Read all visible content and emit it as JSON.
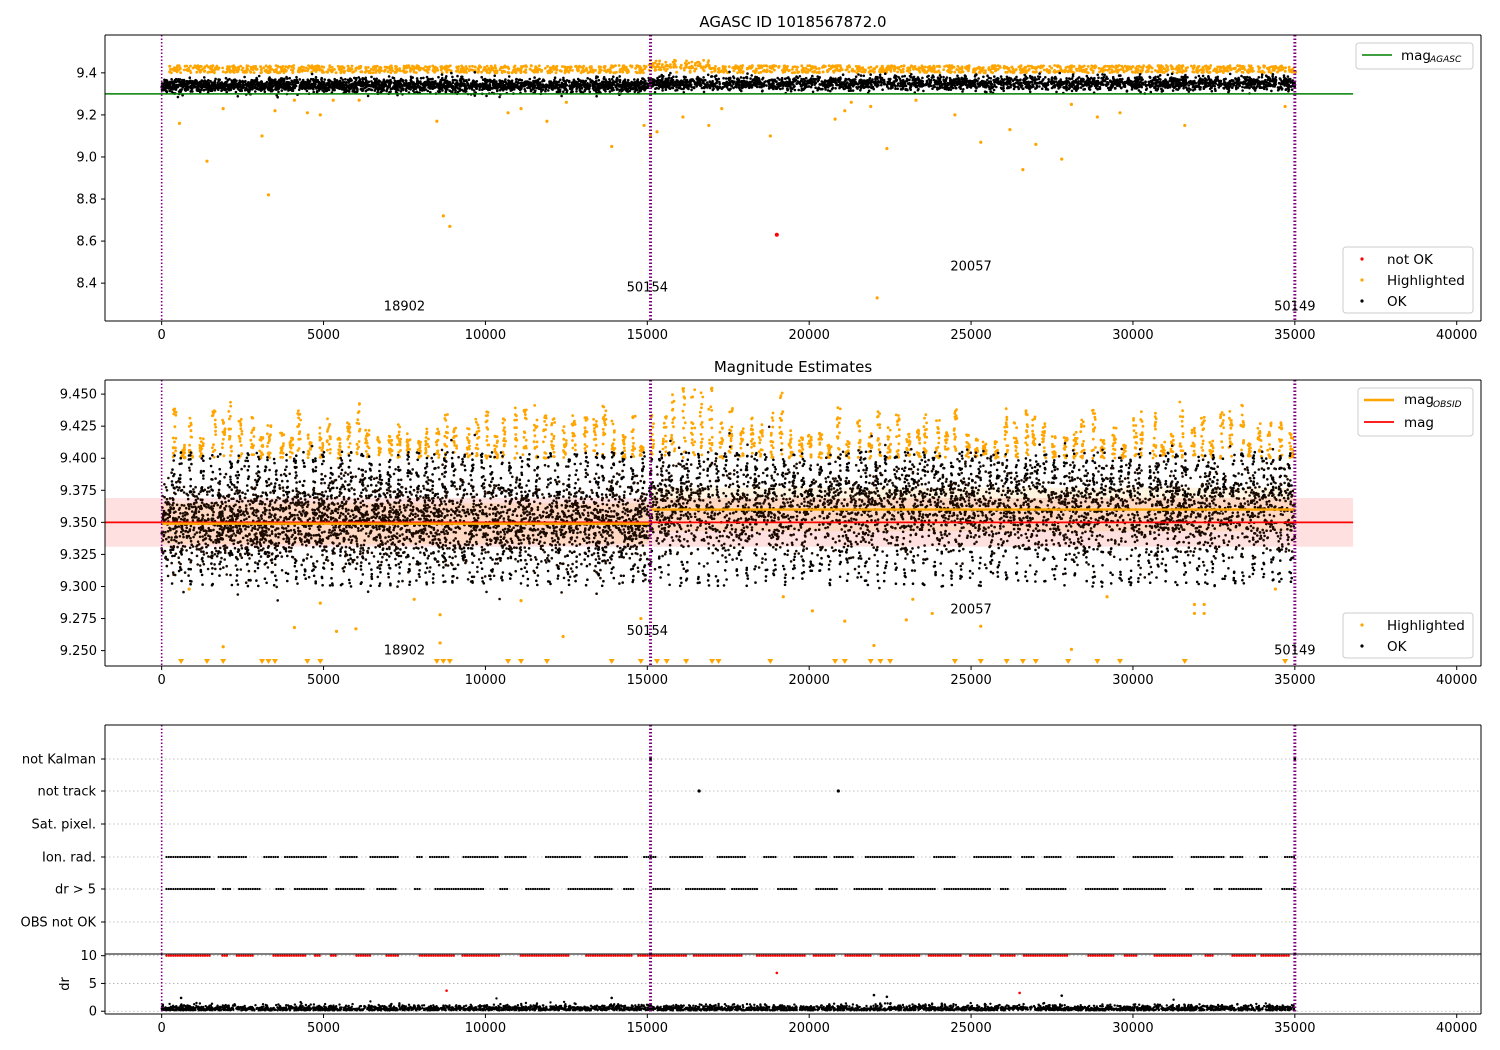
{
  "colors": {
    "ok": "#000000",
    "highlighted": "#ffa500",
    "not_ok": "#ff0000",
    "mag_agasc": "#008000",
    "mag_obsid": "#ffa500",
    "mag": "#ff0000",
    "obs_boundary": "#800080"
  },
  "chart_data": [
    {
      "type": "scatter",
      "title": "AGASC ID 1018567872.0",
      "xlim": [
        -1750,
        40750
      ],
      "ylim": [
        8.22,
        9.58
      ],
      "xticks": [
        0,
        5000,
        10000,
        15000,
        20000,
        25000,
        30000,
        35000,
        40000
      ],
      "xtick_labels": [
        "0",
        "5000",
        "10000",
        "15000",
        "20000",
        "25000",
        "30000",
        "35000",
        "40000"
      ],
      "yticks": [
        8.4,
        8.6,
        8.8,
        9.0,
        9.2,
        9.4
      ],
      "ytick_labels": [
        "8.4",
        "8.6",
        "8.8",
        "9.0",
        "9.2",
        "9.4"
      ],
      "obs_boundaries": [
        0,
        15100,
        35000
      ],
      "obs_labels": [
        {
          "text": "18902",
          "x": 7500,
          "y": 8.27
        },
        {
          "text": "50154",
          "x": 15000,
          "y": 8.36
        },
        {
          "text": "20057",
          "x": 25000,
          "y": 8.46
        },
        {
          "text": "50149",
          "x": 35000,
          "y": 8.27
        }
      ],
      "hlines": [
        {
          "name": "mag_agasc",
          "y": 9.3,
          "x": [
            -1750,
            36800
          ]
        }
      ],
      "series": [
        {
          "name": "OK",
          "band": [
            {
              "x": [
                0,
                15100
              ],
              "y": [
                9.31,
                9.37
              ]
            },
            {
              "x": [
                15100,
                35000
              ],
              "y": [
                9.32,
                9.38
              ]
            }
          ]
        },
        {
          "name": "Highlighted",
          "band_top": [
            9.4,
            9.44
          ]
        },
        {
          "name": "not OK",
          "points": [
            [
              19000,
              8.63
            ]
          ]
        }
      ],
      "highlighted_outliers": [
        [
          550,
          9.16
        ],
        [
          1400,
          8.98
        ],
        [
          1900,
          9.23
        ],
        [
          3100,
          9.1
        ],
        [
          3300,
          8.82
        ],
        [
          3500,
          9.22
        ],
        [
          4100,
          9.27
        ],
        [
          4500,
          9.21
        ],
        [
          4900,
          9.2
        ],
        [
          5300,
          9.27
        ],
        [
          6100,
          9.27
        ],
        [
          8500,
          9.17
        ],
        [
          8700,
          8.72
        ],
        [
          8900,
          8.67
        ],
        [
          10700,
          9.21
        ],
        [
          11100,
          9.23
        ],
        [
          11900,
          9.17
        ],
        [
          12500,
          9.26
        ],
        [
          13900,
          9.05
        ],
        [
          14900,
          9.15
        ],
        [
          15100,
          9.1
        ],
        [
          15300,
          9.12
        ],
        [
          16100,
          9.19
        ],
        [
          16900,
          9.15
        ],
        [
          17300,
          9.23
        ],
        [
          18800,
          9.1
        ],
        [
          20800,
          9.18
        ],
        [
          21100,
          9.22
        ],
        [
          21300,
          9.26
        ],
        [
          21900,
          9.24
        ],
        [
          22100,
          8.33
        ],
        [
          22400,
          9.04
        ],
        [
          23300,
          9.27
        ],
        [
          24500,
          9.2
        ],
        [
          25300,
          9.07
        ],
        [
          26200,
          9.13
        ],
        [
          26600,
          8.94
        ],
        [
          27000,
          9.06
        ],
        [
          27800,
          8.99
        ],
        [
          28100,
          9.25
        ],
        [
          28900,
          9.19
        ],
        [
          29600,
          9.21
        ],
        [
          31600,
          9.15
        ],
        [
          34700,
          9.24
        ]
      ],
      "legend": {
        "position": "upper right",
        "entries": [
          "mag",
          "AGASC"
        ]
      },
      "legend2": {
        "position": "lower right",
        "entries": [
          "not OK",
          "Highlighted",
          "OK"
        ]
      }
    },
    {
      "type": "scatter",
      "title": "Magnitude Estimates",
      "xlim": [
        -1750,
        40750
      ],
      "ylim": [
        9.238,
        9.461
      ],
      "xticks": [
        0,
        5000,
        10000,
        15000,
        20000,
        25000,
        30000,
        35000,
        40000
      ],
      "xtick_labels": [
        "0",
        "5000",
        "10000",
        "15000",
        "20000",
        "25000",
        "30000",
        "35000",
        "40000"
      ],
      "yticks": [
        9.25,
        9.275,
        9.3,
        9.325,
        9.35,
        9.375,
        9.4,
        9.425,
        9.45
      ],
      "ytick_labels": [
        "9.250",
        "9.275",
        "9.300",
        "9.325",
        "9.350",
        "9.375",
        "9.400",
        "9.425",
        "9.450"
      ],
      "obs_boundaries": [
        0,
        15100,
        35000
      ],
      "obs_labels": [
        {
          "text": "18902",
          "x": 7500,
          "y": 9.247
        },
        {
          "text": "50154",
          "x": 15000,
          "y": 9.262
        },
        {
          "text": "20057",
          "x": 25000,
          "y": 9.279
        },
        {
          "text": "50149",
          "x": 35000,
          "y": 9.247
        }
      ],
      "mag": 9.35,
      "mag_band": [
        9.331,
        9.369
      ],
      "mag_obsid": [
        {
          "x": [
            0,
            15100
          ],
          "y": 9.349,
          "band": [
            9.333,
            9.365
          ]
        },
        {
          "x": [
            15100,
            35000
          ],
          "y": 9.36,
          "band": [
            9.343,
            9.377
          ]
        }
      ],
      "series": [
        {
          "name": "OK",
          "band": [
            {
              "x": [
                0,
                15100
              ],
              "y": [
                9.32,
                9.38
              ]
            },
            {
              "x": [
                15100,
                35000
              ],
              "y": [
                9.33,
                9.39
              ]
            }
          ]
        },
        {
          "name": "Highlighted",
          "band_top": [
            9.4,
            9.44
          ]
        }
      ],
      "highlighted_low": [
        600,
        1400,
        1900,
        3100,
        3300,
        3500,
        4500,
        4900,
        8500,
        8700,
        8900,
        10700,
        11100,
        11900,
        13900,
        14800,
        15300,
        15600,
        16200,
        17000,
        17200,
        18800,
        20800,
        21100,
        21900,
        22200,
        22500,
        24500,
        25300,
        26100,
        26600,
        27000,
        28000,
        28900,
        29600,
        31600,
        34700
      ],
      "highlighted_outliers": [
        [
          850,
          9.298
        ],
        [
          1900,
          9.253
        ],
        [
          4100,
          9.268
        ],
        [
          4900,
          9.287
        ],
        [
          5400,
          9.265
        ],
        [
          6000,
          9.267
        ],
        [
          7800,
          9.29
        ],
        [
          8600,
          9.256
        ],
        [
          8600,
          9.278
        ],
        [
          11100,
          9.289
        ],
        [
          12400,
          9.261
        ],
        [
          14800,
          9.275
        ],
        [
          19200,
          9.292
        ],
        [
          20100,
          9.281
        ],
        [
          21100,
          9.273
        ],
        [
          22000,
          9.254
        ],
        [
          23000,
          9.274
        ],
        [
          23200,
          9.29
        ],
        [
          23800,
          9.279
        ],
        [
          25300,
          9.269
        ],
        [
          28100,
          9.251
        ],
        [
          29200,
          9.292
        ],
        [
          31900,
          9.279
        ],
        [
          31900,
          9.286
        ],
        [
          32200,
          9.286
        ],
        [
          32200,
          9.279
        ],
        [
          34400,
          9.298
        ]
      ],
      "legend": {
        "position": "upper right",
        "entries": [
          "mag",
          "OBSID",
          "mag"
        ]
      },
      "legend2": {
        "position": "lower right",
        "entries": [
          "Highlighted",
          "OK"
        ]
      }
    },
    {
      "type": "scatter",
      "title": "",
      "xlim": [
        -1750,
        40750
      ],
      "ytick_labels": [
        "not Kalman",
        "not track",
        "Sat. pixel.",
        "Ion. rad.",
        "dr > 5",
        "OBS not OK"
      ],
      "obs_boundaries": [
        0,
        15100,
        35000
      ],
      "flags": {
        "not_track": [
          16600,
          20900
        ],
        "not_kalman": [
          15100,
          35000
        ]
      },
      "flag_rows": [
        "Ion. rad.",
        "dr > 5"
      ]
    },
    {
      "type": "scatter",
      "title": "",
      "xlim": [
        -1750,
        40750
      ],
      "ylim": [
        -0.5,
        10.3
      ],
      "ylabel": "dr",
      "xticks": [
        0,
        5000,
        10000,
        15000,
        20000,
        25000,
        30000,
        35000,
        40000
      ],
      "xtick_labels": [
        "0",
        "5000",
        "10000",
        "15000",
        "20000",
        "25000",
        "30000",
        "35000",
        "40000"
      ],
      "yticks": [
        0,
        5,
        10
      ],
      "ytick_labels": [
        "0",
        "5",
        "10"
      ],
      "obs_boundaries": [
        0,
        15100,
        35000
      ],
      "dr_clipped": 10,
      "dr_outliers": [
        [
          600,
          2.4
        ],
        [
          8800,
          3.7
        ],
        [
          13900,
          2.4
        ],
        [
          19000,
          6.9
        ],
        [
          22000,
          2.9
        ],
        [
          22400,
          2.6
        ],
        [
          26500,
          3.3
        ],
        [
          27800,
          2.8
        ]
      ]
    }
  ]
}
